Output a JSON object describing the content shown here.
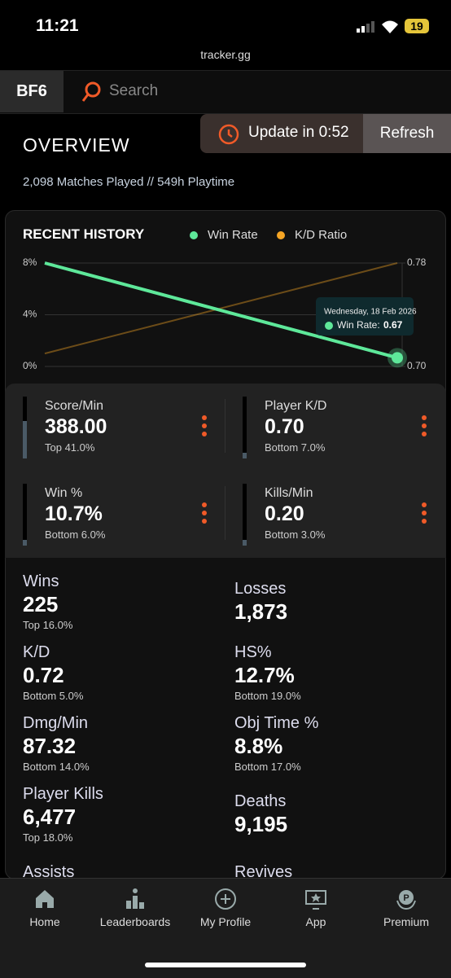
{
  "status_bar": {
    "time": "11:21",
    "battery": "19"
  },
  "browser": {
    "url": "tracker.gg"
  },
  "nav": {
    "logo": "BF6",
    "search_placeholder": "Search"
  },
  "update_banner": {
    "text": "Update in 0:52",
    "button": "Refresh"
  },
  "overview": {
    "title": "OVERVIEW",
    "subtitle": "2,098 Matches Played // 549h Playtime"
  },
  "chart_data": {
    "type": "line",
    "title": "RECENT HISTORY",
    "categories": [
      null,
      "Wednesday, 18 Feb 2026"
    ],
    "series": [
      {
        "name": "Win Rate",
        "color": "#5ee89a",
        "values": [
          8,
          0.67
        ]
      },
      {
        "name": "K/D Ratio",
        "color": "#f5a524",
        "axis": "y2",
        "values": [
          0.71,
          0.78
        ]
      }
    ],
    "ylim": [
      0,
      8
    ],
    "yticks": [
      {
        "value": 0,
        "label": "0%"
      },
      {
        "value": 4,
        "label": "4%"
      },
      {
        "value": 8,
        "label": "8%"
      }
    ],
    "y2lim": [
      0.7,
      0.78
    ],
    "y2ticks": [
      {
        "value": 0.7,
        "label": "0.70"
      },
      {
        "value": 0.78,
        "label": "0.78"
      }
    ],
    "grid": true,
    "tooltip_label": "Win Rate:"
  },
  "featured_stats": [
    {
      "label": "Score/Min",
      "value": "388.00",
      "rank": "Top 41.0%"
    },
    {
      "label": "Player K/D",
      "value": "0.70",
      "rank": "Bottom 7.0%"
    },
    {
      "label": "Win %",
      "value": "10.7%",
      "rank": "Bottom 6.0%"
    },
    {
      "label": "Kills/Min",
      "value": "0.20",
      "rank": "Bottom 3.0%"
    }
  ],
  "stats": [
    {
      "label": "Wins",
      "value": "225",
      "rank": "Top 16.0%"
    },
    {
      "label": "Losses",
      "value": "1,873"
    },
    {
      "label": "K/D",
      "value": "0.72",
      "rank": "Bottom 5.0%"
    },
    {
      "label": "HS%",
      "value": "12.7%",
      "rank": "Bottom 19.0%"
    },
    {
      "label": "Dmg/Min",
      "value": "87.32",
      "rank": "Bottom 14.0%"
    },
    {
      "label": "Obj Time %",
      "value": "8.8%",
      "rank": "Bottom 17.0%"
    },
    {
      "label": "Player Kills",
      "value": "6,477",
      "rank": "Top 18.0%"
    },
    {
      "label": "Deaths",
      "value": "9,195"
    },
    {
      "label": "Assists",
      "value": ""
    },
    {
      "label": "Revives",
      "value": ""
    }
  ],
  "tab_bar": [
    {
      "label": "Home"
    },
    {
      "label": "Leaderboards"
    },
    {
      "label": "My Profile"
    },
    {
      "label": "App"
    },
    {
      "label": "Premium"
    }
  ]
}
